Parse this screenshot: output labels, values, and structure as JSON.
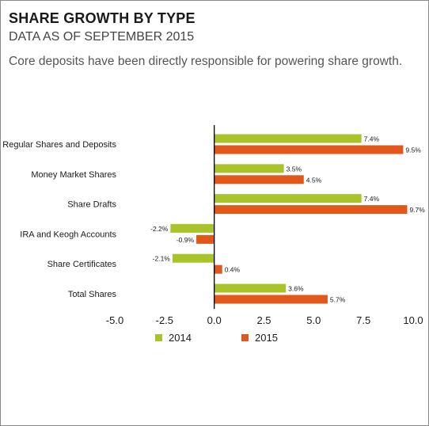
{
  "header": {
    "title": "SHARE GROWTH BY TYPE",
    "subtitle": "DATA AS OF SEPTEMBER 2015",
    "note": "Core deposits have been directly responsible for powering share growth."
  },
  "colors": {
    "series_2014": "#a8c42a",
    "series_2015": "#e2571a",
    "axis": "#000000"
  },
  "chart_data": {
    "type": "bar",
    "orientation": "horizontal",
    "categories": [
      "Regular Shares and Deposits",
      "Money Market Shares",
      "Share Drafts",
      "IRA and Keogh Accounts",
      "Share Certificates",
      "Total Shares"
    ],
    "series": [
      {
        "name": "2014",
        "values": [
          7.4,
          3.5,
          7.4,
          -2.2,
          -2.1,
          3.6
        ],
        "labels": [
          "7.4%",
          "3.5%",
          "7.4%",
          "-2.2%",
          "-2.1%",
          "3.6%"
        ]
      },
      {
        "name": "2015",
        "values": [
          9.5,
          4.5,
          9.7,
          -0.9,
          0.4,
          5.7
        ],
        "labels": [
          "9.5%",
          "4.5%",
          "9.7%",
          "-0.9%",
          "0.4%",
          "5.7%"
        ]
      }
    ],
    "xlim": [
      -5.0,
      10.0
    ],
    "xticks": [
      "-5.0",
      "-2.5",
      "0.0",
      "2.5",
      "5.0",
      "7.5",
      "10.0"
    ],
    "grid": false,
    "legend_position": "bottom"
  }
}
